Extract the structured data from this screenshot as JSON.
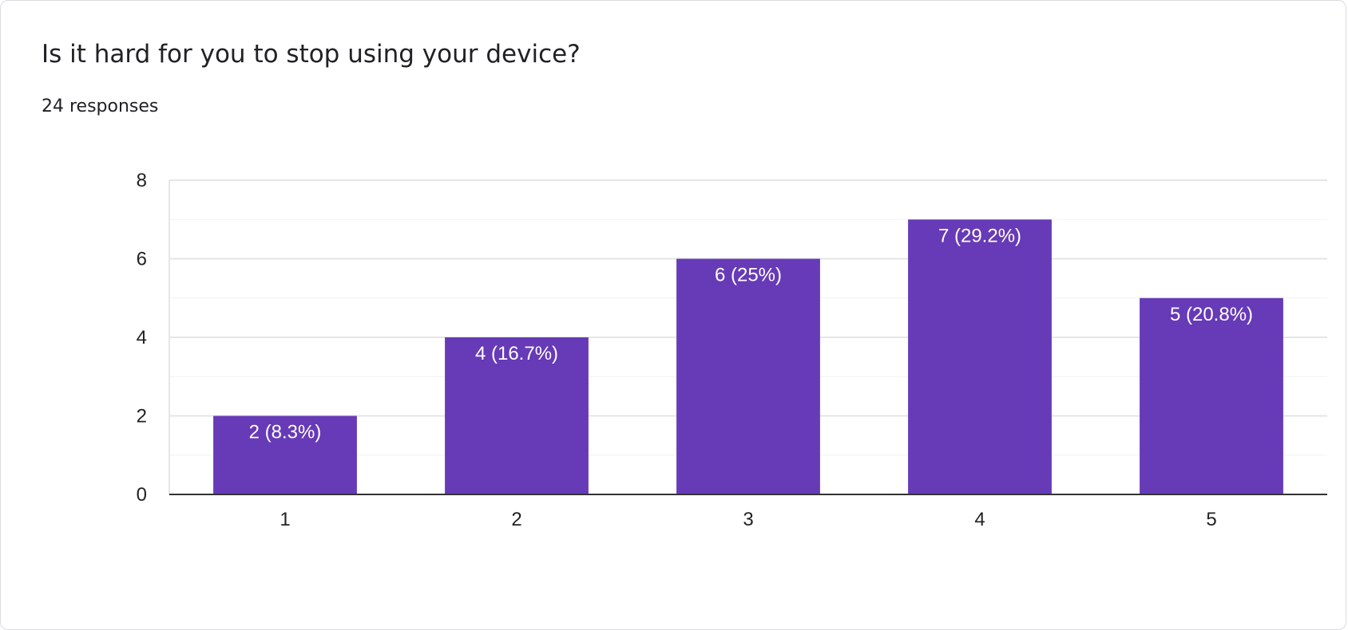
{
  "card": {
    "title": "Is it hard for you to stop using your device?",
    "responses": "24 responses"
  },
  "colors": {
    "bar": "#673ab7",
    "grid": "#e6e6e6",
    "minor_grid": "#f2f2f2",
    "baseline": "#333333",
    "label": "#ffffff"
  },
  "chart_data": {
    "type": "bar",
    "categories": [
      "1",
      "2",
      "3",
      "4",
      "5"
    ],
    "values": [
      2,
      4,
      6,
      7,
      5
    ],
    "data_labels": [
      "2 (8.3%)",
      "4 (16.7%)",
      "6 (25%)",
      "7 (29.2%)",
      "5 (20.8%)"
    ],
    "ylim": [
      0,
      8
    ],
    "yticks": [
      "0",
      "2",
      "4",
      "6",
      "8"
    ],
    "grid": true,
    "legend": "none"
  }
}
